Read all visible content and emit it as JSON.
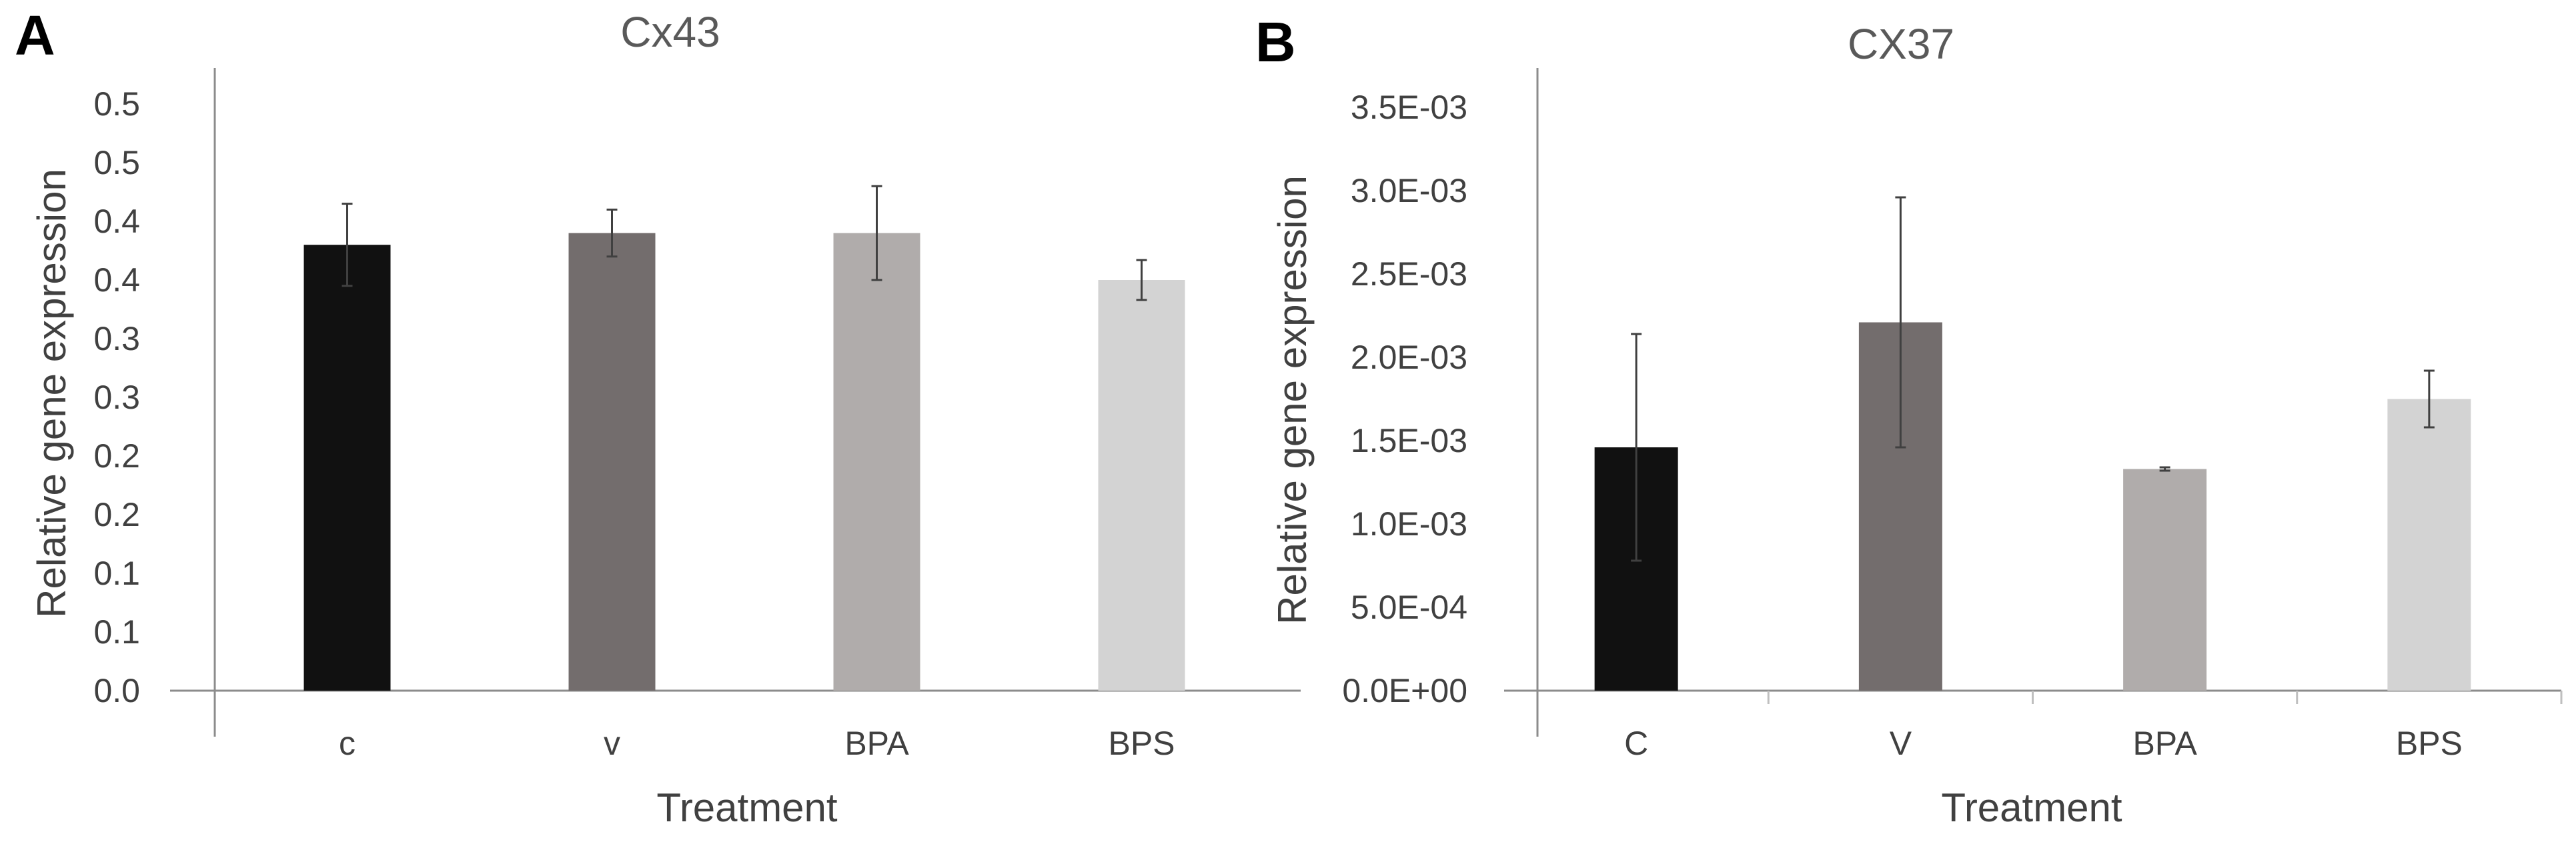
{
  "chart_data": [
    {
      "type": "bar",
      "panel_label": "A",
      "title": "Cx43",
      "xlabel": "Treatment",
      "ylabel": "Relative gene expression",
      "categories": [
        "c",
        "v",
        "BPA",
        "BPS"
      ],
      "values": [
        0.38,
        0.39,
        0.39,
        0.35
      ],
      "errors": [
        0.035,
        0.02,
        0.04,
        0.017
      ],
      "colors": [
        "#111111",
        "#736d6d",
        "#b0acab",
        "#d3d3d3"
      ],
      "ylim": [
        0,
        0.5
      ],
      "y_ticks": [
        0,
        0.05,
        0.1,
        0.15,
        0.2,
        0.25,
        0.3,
        0.35,
        0.4,
        0.45,
        0.5
      ],
      "y_tick_labels": [
        "0.0",
        "0.1",
        "0.1",
        "0.2",
        "0.2",
        "0.3",
        "0.3",
        "0.4",
        "0.4",
        "0.5",
        "0.5"
      ],
      "grid": false
    },
    {
      "type": "bar",
      "panel_label": "B",
      "title": "CX37",
      "xlabel": "Treatment",
      "ylabel": "Relative gene expression",
      "categories": [
        "C",
        "V",
        "BPA",
        "BPS"
      ],
      "values": [
        0.00146,
        0.00221,
        0.00133,
        0.00175
      ],
      "errors": [
        0.00068,
        0.00075,
        1e-05,
        0.00017
      ],
      "colors": [
        "#111111",
        "#736d6d",
        "#b0acab",
        "#d3d3d3"
      ],
      "ylim": [
        0,
        0.0035
      ],
      "y_ticks": [
        0,
        0.0005,
        0.001,
        0.0015,
        0.002,
        0.0025,
        0.003,
        0.0035
      ],
      "y_tick_labels": [
        "0.0E+00",
        "5.0E-04",
        "1.0E-03",
        "1.5E-03",
        "2.0E-03",
        "2.5E-03",
        "3.0E-03",
        "3.5E-03"
      ],
      "grid": false,
      "category_tick_marks": true
    }
  ]
}
